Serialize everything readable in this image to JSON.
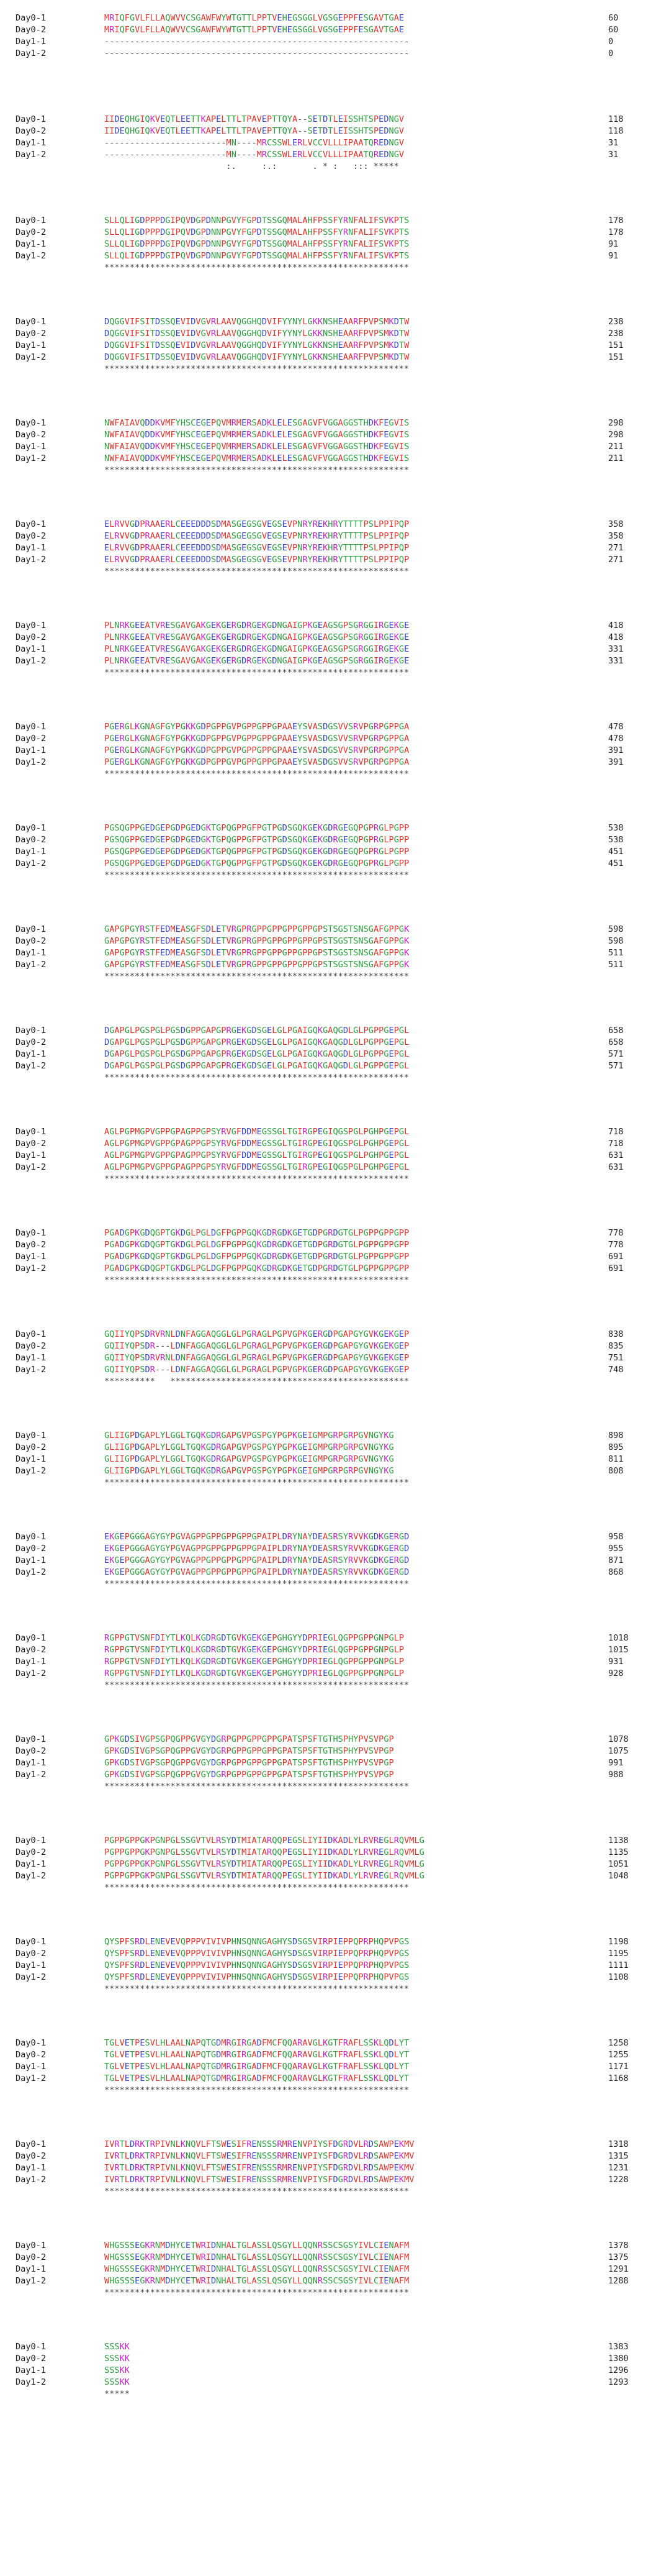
{
  "blocks": [
    {
      "rows": [
        {
          "label": "Day0-1",
          "seq": "MRIQFGVLFLLAQWVVCSGAWFWYWTGTTLPPTVEHEGSGGLVGSGEPPFESGAVTGAE",
          "num": "60"
        },
        {
          "label": "Day0-2",
          "seq": "MRIQFGVLFLLAQWVVCSGAWFWYWTGTTLPPTVEHEGSGGLVGSGEPPFESGAVTGAE",
          "num": "60"
        },
        {
          "label": "Day1-1",
          "seq": "------------------------------------------------------------",
          "num": "0"
        },
        {
          "label": "Day1-2",
          "seq": "------------------------------------------------------------",
          "num": "0"
        }
      ],
      "cons": ""
    },
    {
      "rows": [
        {
          "label": "Day0-1",
          "seq": "IIDEQHGIQKVEQTLEETTKAPELTTLTPAVEPTTQYA--SETDTLEISSHTSPEDNGV",
          "num": "118"
        },
        {
          "label": "Day0-2",
          "seq": "IIDEQHGIQKVEQTLEETTKAPELTTLTPAVEPTTQYA--SETDTLEISSHTSPEDNGV",
          "num": "118"
        },
        {
          "label": "Day1-1",
          "seq": "------------------------MN----MRCSSWLERLVCCVLLLIPAATQREDNGV",
          "num": "31"
        },
        {
          "label": "Day1-2",
          "seq": "------------------------MN----MRCSSWLERLVCCVLLLIPAATQREDNGV",
          "num": "31"
        }
      ],
      "cons": "                        :.     :.:       . * :   ::: *****"
    },
    {
      "rows": [
        {
          "label": "Day0-1",
          "seq": "SLLQLIGDPPPDGIPQVDGPDNNPGVYFGPDTSSGQMALAHFPSSFYRNFALIFSVKPTS",
          "num": "178"
        },
        {
          "label": "Day0-2",
          "seq": "SLLQLIGDPPPDGIPQVDGPDNNPGVYFGPDTSSGQMALAHFPSSFYRNFALIFSVKPTS",
          "num": "178"
        },
        {
          "label": "Day1-1",
          "seq": "SLLQLIGDPPPDGIPQVDGPDNNPGVYFGPDTSSGQMALAHFPSSFYRNFALIFSVKPTS",
          "num": "91"
        },
        {
          "label": "Day1-2",
          "seq": "SLLQLIGDPPPDGIPQVDGPDNNPGVYFGPDTSSGQMALAHFPSSFYRNFALIFSVKPTS",
          "num": "91"
        }
      ],
      "cons": "************************************************************"
    },
    {
      "rows": [
        {
          "label": "Day0-1",
          "seq": "DQGGVIFSITDSSQEVIDVGVRLAAVQGGHQDVIFYYNYLGKKNSHEAARFPVPSMKDTW",
          "num": "238"
        },
        {
          "label": "Day0-2",
          "seq": "DQGGVIFSITDSSQEVIDVGVRLAAVQGGHQDVIFYYNYLGKKNSHEAARFPVPSMKDTW",
          "num": "238"
        },
        {
          "label": "Day1-1",
          "seq": "DQGGVIFSITDSSQEVIDVGVRLAAVQGGHQDVIFYYNYLGKKNSHEAARFPVPSMKDTW",
          "num": "151"
        },
        {
          "label": "Day1-2",
          "seq": "DQGGVIFSITDSSQEVIDVGVRLAAVQGGHQDVIFYYNYLGKKNSHEAARFPVPSMKDTW",
          "num": "151"
        }
      ],
      "cons": "************************************************************"
    },
    {
      "rows": [
        {
          "label": "Day0-1",
          "seq": "NWFAIAVQDDKVMFYHSCEGEPQVMRMERSADKLELESGAGVFVGGAGGSTHDKFEGVIS",
          "num": "298"
        },
        {
          "label": "Day0-2",
          "seq": "NWFAIAVQDDKVMFYHSCEGEPQVMRMERSADKLELESGAGVFVGGAGGSTHDKFEGVIS",
          "num": "298"
        },
        {
          "label": "Day1-1",
          "seq": "NWFAIAVQDDKVMFYHSCEGEPQVMRMERSADKLELESGAGVFVGGAGGSTHDKFEGVIS",
          "num": "211"
        },
        {
          "label": "Day1-2",
          "seq": "NWFAIAVQDDKVMFYHSCEGEPQVMRMERSADKLELESGAGVFVGGAGGSTHDKFEGVIS",
          "num": "211"
        }
      ],
      "cons": "************************************************************"
    },
    {
      "rows": [
        {
          "label": "Day0-1",
          "seq": "ELRVVGDPRAAERLCEEEDDDSDMASGEGSGVEGSEVPNRYREKHRYTTTTPSLPPIPQP",
          "num": "358"
        },
        {
          "label": "Day0-2",
          "seq": "ELRVVGDPRAAERLCEEEDDDSDMASGEGSGVEGSEVPNRYREKHRYTTTTPSLPPIPQP",
          "num": "358"
        },
        {
          "label": "Day1-1",
          "seq": "ELRVVGDPRAAERLCEEEDDDSDMASGEGSGVEGSEVPNRYREKHRYTTTTPSLPPIPQP",
          "num": "271"
        },
        {
          "label": "Day1-2",
          "seq": "ELRVVGDPRAAERLCEEEDDDSDMASGEGSGVEGSEVPNRYREKHRYTTTTPSLPPIPQP",
          "num": "271"
        }
      ],
      "cons": "************************************************************"
    },
    {
      "rows": [
        {
          "label": "Day0-1",
          "seq": "PLNRKGEEATVRESGAVGAKGEKGERGDRGEKGDNGAIGPKGEAGSGPSGRGGIRGEKGE",
          "num": "418"
        },
        {
          "label": "Day0-2",
          "seq": "PLNRKGEEATVRESGAVGAKGEKGERGDRGEKGDNGAIGPKGEAGSGPSGRGGIRGEKGE",
          "num": "418"
        },
        {
          "label": "Day1-1",
          "seq": "PLNRKGEEATVRESGAVGAKGEKGERGDRGEKGDNGAIGPKGEAGSGPSGRGGIRGEKGE",
          "num": "331"
        },
        {
          "label": "Day1-2",
          "seq": "PLNRKGEEATVRESGAVGAKGEKGERGDRGEKGDNGAIGPKGEAGSGPSGRGGIRGEKGE",
          "num": "331"
        }
      ],
      "cons": "************************************************************"
    },
    {
      "rows": [
        {
          "label": "Day0-1",
          "seq": "PGERGLKGNAGFGYPGKKGDPGPPGVPGPPGPPGPAAEYSVASDGSVVSRVPGRPGPPGA",
          "num": "478"
        },
        {
          "label": "Day0-2",
          "seq": "PGERGLKGNAGFGYPGKKGDPGPPGVPGPPGPPGPAAEYSVASDGSVVSRVPGRPGPPGA",
          "num": "478"
        },
        {
          "label": "Day1-1",
          "seq": "PGERGLKGNAGFGYPGKKGDPGPPGVPGPPGPPGPAAEYSVASDGSVVSRVPGRPGPPGA",
          "num": "391"
        },
        {
          "label": "Day1-2",
          "seq": "PGERGLKGNAGFGYPGKKGDPGPPGVPGPPGPPGPAAEYSVASDGSVVSRVPGRPGPPGA",
          "num": "391"
        }
      ],
      "cons": "************************************************************"
    },
    {
      "rows": [
        {
          "label": "Day0-1",
          "seq": "PGSQGPPGEDGEPGDPGEDGKTGPQGPPGFPGTPGDSGQKGEKGDRGEGQPGPRGLPGPP",
          "num": "538"
        },
        {
          "label": "Day0-2",
          "seq": "PGSQGPPGEDGEPGDPGEDGKTGPQGPPGFPGTPGDSGQKGEKGDRGEGQPGPRGLPGPP",
          "num": "538"
        },
        {
          "label": "Day1-1",
          "seq": "PGSQGPPGEDGEPGDPGEDGKTGPQGPPGFPGTPGDSGQKGEKGDRGEGQPGPRGLPGPP",
          "num": "451"
        },
        {
          "label": "Day1-2",
          "seq": "PGSQGPPGEDGEPGDPGEDGKTGPQGPPGFPGTPGDSGQKGEKGDRGEGQPGPRGLPGPP",
          "num": "451"
        }
      ],
      "cons": "************************************************************"
    },
    {
      "rows": [
        {
          "label": "Day0-1",
          "seq": "GAPGPGYRSTFEDMEASGFSDLETVRGPRGPPGPPGPPGPPGPSTSGSTSNSGAFGPPGK",
          "num": "598"
        },
        {
          "label": "Day0-2",
          "seq": "GAPGPGYRSTFEDMEASGFSDLETVRGPRGPPGPPGPPGPPGPSTSGSTSNSGAFGPPGK",
          "num": "598"
        },
        {
          "label": "Day1-1",
          "seq": "GAPGPGYRSTFEDMEASGFSDLETVRGPRGPPGPPGPPGPPGPSTSGSTSNSGAFGPPGK",
          "num": "511"
        },
        {
          "label": "Day1-2",
          "seq": "GAPGPGYRSTFEDMEASGFSDLETVRGPRGPPGPPGPPGPPGPSTSGSTSNSGAFGPPGK",
          "num": "511"
        }
      ],
      "cons": "************************************************************"
    },
    {
      "rows": [
        {
          "label": "Day0-1",
          "seq": "DGAPGLPGSPGLPGSDGPPGAPGPRGEKGDSGELGLPGAIGQKGAQGDLGLPGPPGEPGL",
          "num": "658"
        },
        {
          "label": "Day0-2",
          "seq": "DGAPGLPGSPGLPGSDGPPGAPGPRGEKGDSGELGLPGAIGQKGAQGDLGLPGPPGEPGL",
          "num": "658"
        },
        {
          "label": "Day1-1",
          "seq": "DGAPGLPGSPGLPGSDGPPGAPGPRGEKGDSGELGLPGAIGQKGAQGDLGLPGPPGEPGL",
          "num": "571"
        },
        {
          "label": "Day1-2",
          "seq": "DGAPGLPGSPGLPGSDGPPGAPGPRGEKGDSGELGLPGAIGQKGAQGDLGLPGPPGEPGL",
          "num": "571"
        }
      ],
      "cons": "************************************************************"
    },
    {
      "rows": [
        {
          "label": "Day0-1",
          "seq": "AGLPGPMGPVGPPGPAGPPGPSYRVGFDDMEGSSGLTGIRGPEGIQGSPGLPGHPGEPGL",
          "num": "718"
        },
        {
          "label": "Day0-2",
          "seq": "AGLPGPMGPVGPPGPAGPPGPSYRVGFDDMEGSSGLTGIRGPEGIQGSPGLPGHPGEPGL",
          "num": "718"
        },
        {
          "label": "Day1-1",
          "seq": "AGLPGPMGPVGPPGPAGPPGPSYRVGFDDMEGSSGLTGIRGPEGIQGSPGLPGHPGEPGL",
          "num": "631"
        },
        {
          "label": "Day1-2",
          "seq": "AGLPGPMGPVGPPGPAGPPGPSYRVGFDDMEGSSGLTGIRGPEGIQGSPGLPGHPGEPGL",
          "num": "631"
        }
      ],
      "cons": "************************************************************"
    },
    {
      "rows": [
        {
          "label": "Day0-1",
          "seq": "PGADGPKGDQGPTGKDGLPGLDGFPGPPGQKGDRGDKGETGDPGRDGTGLPGPPGPPGPP",
          "num": "778"
        },
        {
          "label": "Day0-2",
          "seq": "PGADGPKGDQGPTGKDGLPGLDGFPGPPGQKGDRGDKGETGDPGRDGTGLPGPPGPPGPP",
          "num": "778"
        },
        {
          "label": "Day1-1",
          "seq": "PGADGPKGDQGPTGKDGLPGLDGFPGPPGQKGDRGDKGETGDPGRDGTGLPGPPGPPGPP",
          "num": "691"
        },
        {
          "label": "Day1-2",
          "seq": "PGADGPKGDQGPTGKDGLPGLDGFPGPPGQKGDRGDKGETGDPGRDGTGLPGPPGPPGPP",
          "num": "691"
        }
      ],
      "cons": "************************************************************"
    },
    {
      "rows": [
        {
          "label": "Day0-1",
          "seq": "GQIIYQPSDRVRNLDNFAGGAQGGLGLPGRAGLPGPVGPKGERGDPGAPGYGVKGEKGEP",
          "num": "838"
        },
        {
          "label": "Day0-2",
          "seq": "GQIIYQPSDR---LDNFAGGAQGGLGLPGRAGLPGPVGPKGERGDPGAPGYGVKGEKGEP",
          "num": "835"
        },
        {
          "label": "Day1-1",
          "seq": "GQIIYQPSDRVRNLDNFAGGAQGGLGLPGRAGLPGPVGPKGERGDPGAPGYGVKGEKGEP",
          "num": "751"
        },
        {
          "label": "Day1-2",
          "seq": "GQIIYQPSDR---LDNFAGGAQGGLGLPGRAGLPGPVGPKGERGDPGAPGYGVKGEKGEP",
          "num": "748"
        }
      ],
      "cons": "**********   ***********************************************"
    },
    {
      "rows": [
        {
          "label": "Day0-1",
          "seq": "GLIIGPDGAPLYLGGLTGQKGDRGAPGVPGSPGYPGPKGEIGMPGRPGRPGVNGYKG",
          "num": "898"
        },
        {
          "label": "Day0-2",
          "seq": "GLIIGPDGAPLYLGGLTGQKGDRGAPGVPGSPGYPGPKGEIGMPGRPGRPGVNGYKG",
          "num": "895"
        },
        {
          "label": "Day1-1",
          "seq": "GLIIGPDGAPLYLGGLTGQKGDRGAPGVPGSPGYPGPKGEIGMPGRPGRPGVNGYKG",
          "num": "811"
        },
        {
          "label": "Day1-2",
          "seq": "GLIIGPDGAPLYLGGLTGQKGDRGAPGVPGSPGYPGPKGEIGMPGRPGRPGVNGYKG",
          "num": "808"
        }
      ],
      "cons": "************************************************************"
    },
    {
      "rows": [
        {
          "label": "Day0-1",
          "seq": "EKGEPGGGAGYGYPGVAGPPGPPGPPGPPGPAIPLDRYNAYDEASRSYRVVKGDKGERGD",
          "num": "958"
        },
        {
          "label": "Day0-2",
          "seq": "EKGEPGGGAGYGYPGVAGPPGPPGPPGPPGPAIPLDRYNAYDEASRSYRVVKGDKGERGD",
          "num": "955"
        },
        {
          "label": "Day1-1",
          "seq": "EKGEPGGGAGYGYPGVAGPPGPPGPPGPPGPAIPLDRYNAYDEASRSYRVVKGDKGERGD",
          "num": "871"
        },
        {
          "label": "Day1-2",
          "seq": "EKGEPGGGAGYGYPGVAGPPGPPGPPGPPGPAIPLDRYNAYDEASRSYRVVKGDKGERGD",
          "num": "868"
        }
      ],
      "cons": "************************************************************"
    },
    {
      "rows": [
        {
          "label": "Day0-1",
          "seq": "RGPPGTVSNFDIYTLKQLKGDRGDTGVKGEKGEPGHGYYDPRIEGLQGPPGPPGNPGLP",
          "num": "1018"
        },
        {
          "label": "Day0-2",
          "seq": "RGPPGTVSNFDIYTLKQLKGDRGDTGVKGEKGEPGHGYYDPRIEGLQGPPGPPGNPGLP",
          "num": "1015"
        },
        {
          "label": "Day1-1",
          "seq": "RGPPGTVSNFDIYTLKQLKGDRGDTGVKGEKGEPGHGYYDPRIEGLQGPPGPPGNPGLP",
          "num": "931"
        },
        {
          "label": "Day1-2",
          "seq": "RGPPGTVSNFDIYTLKQLKGDRGDTGVKGEKGEPGHGYYDPRIEGLQGPPGPPGNPGLP",
          "num": "928"
        }
      ],
      "cons": "************************************************************"
    },
    {
      "rows": [
        {
          "label": "Day0-1",
          "seq": "GPKGDSIVGPSGPQGPPGVGYDGRPGPPGPPGPPGPATSPSFTGTHSPHYPVSVPGP",
          "num": "1078"
        },
        {
          "label": "Day0-2",
          "seq": "GPKGDSIVGPSGPQGPPGVGYDGRPGPPGPPGPPGPATSPSFTGTHSPHYPVSVPGP",
          "num": "1075"
        },
        {
          "label": "Day1-1",
          "seq": "GPKGDSIVGPSGPQGPPGVGYDGRPGPPGPPGPPGPATSPSFTGTHSPHYPVSVPGP",
          "num": "991"
        },
        {
          "label": "Day1-2",
          "seq": "GPKGDSIVGPSGPQGPPGVGYDGRPGPPGPPGPPGPATSPSFTGTHSPHYPVSVPGP",
          "num": "988"
        }
      ],
      "cons": "************************************************************"
    },
    {
      "rows": [
        {
          "label": "Day0-1",
          "seq": "PGPPGPPGKPGNPGLSSGVTVLRSYDTMIATARQQPEGSLIYIIDKADLYLRVREGLRQVMLG",
          "num": "1138"
        },
        {
          "label": "Day0-2",
          "seq": "PGPPGPPGKPGNPGLSSGVTVLRSYDTMIATARQQPEGSLIYIIDKADLYLRVREGLRQVMLG",
          "num": "1135"
        },
        {
          "label": "Day1-1",
          "seq": "PGPPGPPGKPGNPGLSSGVTVLRSYDTMIATARQQPEGSLIYIIDKADLYLRVREGLRQVMLG",
          "num": "1051"
        },
        {
          "label": "Day1-2",
          "seq": "PGPPGPPGKPGNPGLSSGVTVLRSYDTMIATARQQPEGSLIYIIDKADLYLRVREGLRQVMLG",
          "num": "1048"
        }
      ],
      "cons": "************************************************************"
    },
    {
      "rows": [
        {
          "label": "Day0-1",
          "seq": "QYSPFSRDLENEVEVQPPPVIVIVPHNSQNNGAGHYSDSGSVIRPIEPPQPRPHQPVPGS",
          "num": "1198"
        },
        {
          "label": "Day0-2",
          "seq": "QYSPFSRDLENEVEVQPPPVIVIVPHNSQNNGAGHYSDSGSVIRPIEPPQPRPHQPVPGS",
          "num": "1195"
        },
        {
          "label": "Day1-1",
          "seq": "QYSPFSRDLENEVEVQPPPVIVIVPHNSQNNGAGHYSDSGSVIRPIEPPQPRPHQPVPGS",
          "num": "1111"
        },
        {
          "label": "Day1-2",
          "seq": "QYSPFSRDLENEVEVQPPPVIVIVPHNSQNNGAGHYSDSGSVIRPIEPPQPRPHQPVPGS",
          "num": "1108"
        }
      ],
      "cons": "************************************************************"
    },
    {
      "rows": [
        {
          "label": "Day0-1",
          "seq": "TGLVETPESVLHLAALNAPQTGDMRGIRGADFMCFQQARAVGLKGTFRAFLSSKLQDLYT",
          "num": "1258"
        },
        {
          "label": "Day0-2",
          "seq": "TGLVETPESVLHLAALNAPQTGDMRGIRGADFMCFQQARAVGLKGTFRAFLSSKLQDLYT",
          "num": "1255"
        },
        {
          "label": "Day1-1",
          "seq": "TGLVETPESVLHLAALNAPQTGDMRGIRGADFMCFQQARAVGLKGTFRAFLSSKLQDLYT",
          "num": "1171"
        },
        {
          "label": "Day1-2",
          "seq": "TGLVETPESVLHLAALNAPQTGDMRGIRGADFMCFQQARAVGLKGTFRAFLSSKLQDLYT",
          "num": "1168"
        }
      ],
      "cons": "************************************************************"
    },
    {
      "rows": [
        {
          "label": "Day0-1",
          "seq": "IVRTLDRKTRPIVNLKNQVLFTSWESIFRENSSSRMRENVPIYSFDGRDVLRDSAWPEKMV",
          "num": "1318"
        },
        {
          "label": "Day0-2",
          "seq": "IVRTLDRKTRPIVNLKNQVLFTSWESIFRENSSSRMRENVPIYSFDGRDVLRDSAWPEKMV",
          "num": "1315"
        },
        {
          "label": "Day1-1",
          "seq": "IVRTLDRKTRPIVNLKNQVLFTSWESIFRENSSSRMRENVPIYSFDGRDVLRDSAWPEKMV",
          "num": "1231"
        },
        {
          "label": "Day1-2",
          "seq": "IVRTLDRKTRPIVNLKNQVLFTSWESIFRENSSSRMRENVPIYSFDGRDVLRDSAWPEKMV",
          "num": "1228"
        }
      ],
      "cons": "************************************************************"
    },
    {
      "rows": [
        {
          "label": "Day0-1",
          "seq": "WHGSSSEGKRNMDHYCETWRIDNHALTGLASSLQSGYLLQQNRSSCSGSYIVLCIENAFM",
          "num": "1378"
        },
        {
          "label": "Day0-2",
          "seq": "WHGSSSEGKRNMDHYCETWRIDNHALTGLASSLQSGYLLQQNRSSCSGSYIVLCIENAFM",
          "num": "1375"
        },
        {
          "label": "Day1-1",
          "seq": "WHGSSSEGKRNMDHYCETWRIDNHALTGLASSLQSGYLLQQNRSSCSGSYIVLCIENAFM",
          "num": "1291"
        },
        {
          "label": "Day1-2",
          "seq": "WHGSSSEGKRNMDHYCETWRIDNHALTGLASSLQSGYLLQQNRSSCSGSYIVLCIENAFM",
          "num": "1288"
        }
      ],
      "cons": "************************************************************"
    },
    {
      "rows": [
        {
          "label": "Day0-1",
          "seq": "SSSKK",
          "num": "1383"
        },
        {
          "label": "Day0-2",
          "seq": "SSSKK",
          "num": "1380"
        },
        {
          "label": "Day1-1",
          "seq": "SSSKK",
          "num": "1296"
        },
        {
          "label": "Day1-2",
          "seq": "SSSKK",
          "num": "1293"
        }
      ],
      "cons": "*****"
    }
  ]
}
